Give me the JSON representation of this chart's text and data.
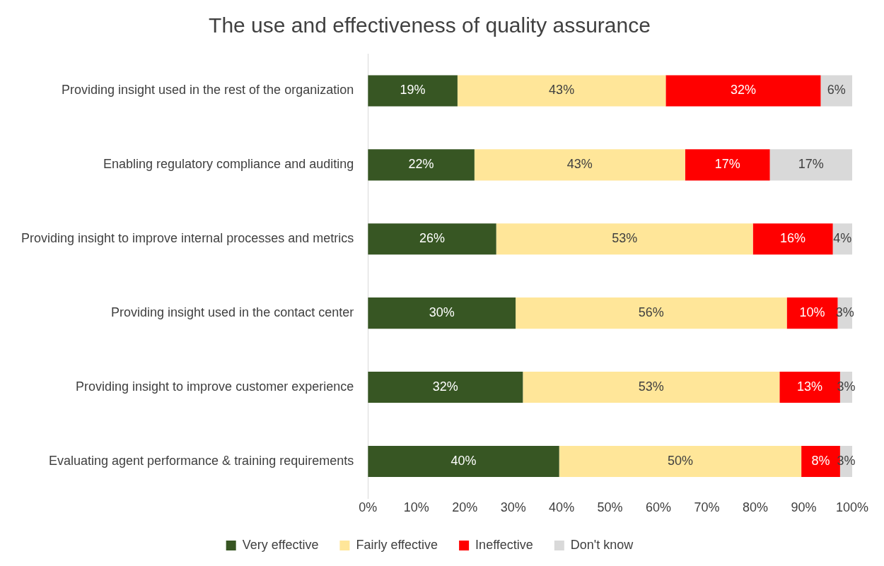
{
  "chart_data": {
    "type": "bar",
    "title": "The use and effectiveness of quality assurance",
    "orientation": "horizontal",
    "stacked": true,
    "categories": [
      "Providing insight used in the rest of the organization",
      "Enabling regulatory compliance and auditing",
      "Providing insight to improve internal processes and metrics",
      "Providing insight used in the contact center",
      "Providing insight to improve customer experience",
      "Evaluating agent performance & training requirements"
    ],
    "series": [
      {
        "name": "Very effective",
        "color": "#375623",
        "values": [
          18.5,
          22,
          26.5,
          30.5,
          32,
          39.5
        ],
        "value_labels": [
          "19%",
          "22%",
          "26%",
          "30%",
          "32%",
          "40%"
        ]
      },
      {
        "name": "Fairly effective",
        "color": "#ffe699",
        "values": [
          43,
          43.5,
          53,
          56,
          53,
          50
        ],
        "value_labels": [
          "43%",
          "43%",
          "53%",
          "56%",
          "53%",
          "50%"
        ]
      },
      {
        "name": "Ineffective",
        "color": "#ff0000",
        "values": [
          32,
          17.5,
          16.5,
          10.5,
          12.5,
          8
        ],
        "value_labels": [
          "32%",
          "17%",
          "16%",
          "10%",
          "13%",
          "8%"
        ]
      },
      {
        "name": "Don't know",
        "color": "#d9d9d9",
        "values": [
          6.5,
          17,
          4,
          3,
          2.5,
          2.5
        ],
        "value_labels": [
          "6%",
          "17%",
          "4%",
          "3%",
          "3%",
          "3%"
        ]
      }
    ],
    "xlim": [
      0,
      100
    ],
    "xticks": [
      {
        "value": 0,
        "label": "0%"
      },
      {
        "value": 10,
        "label": "10%"
      },
      {
        "value": 20,
        "label": "20%"
      },
      {
        "value": 30,
        "label": "30%"
      },
      {
        "value": 40,
        "label": "40%"
      },
      {
        "value": 50,
        "label": "50%"
      },
      {
        "value": 60,
        "label": "60%"
      },
      {
        "value": 70,
        "label": "70%"
      },
      {
        "value": 80,
        "label": "80%"
      },
      {
        "value": 90,
        "label": "90%"
      },
      {
        "value": 100,
        "label": "100%"
      }
    ],
    "grid": false,
    "legend": "bottom"
  }
}
